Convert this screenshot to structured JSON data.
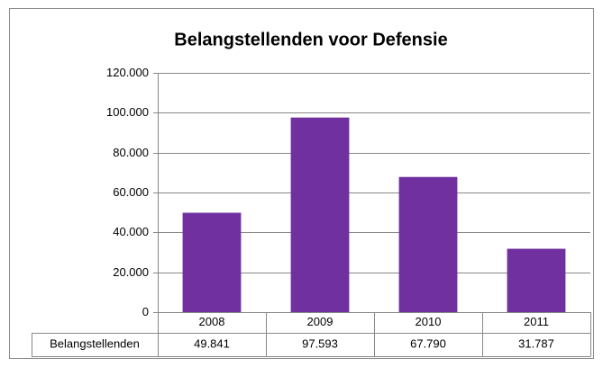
{
  "chart_data": {
    "type": "bar",
    "title": "Belangstellenden voor Defensie",
    "categories": [
      "2008",
      "2009",
      "2010",
      "2011"
    ],
    "series": [
      {
        "name": "Belangstellenden",
        "color": "#7030a0",
        "values": [
          49841,
          97593,
          67790,
          31787
        ],
        "value_labels": [
          "49.841",
          "97.593",
          "67.790",
          "31.787"
        ]
      }
    ],
    "ylim": [
      0,
      120000
    ],
    "yticks": [
      0,
      {
        "value": 20000,
        "label": "20.000"
      },
      {
        "value": 40000,
        "label": "40.000"
      },
      {
        "value": 60000,
        "label": "60.000"
      },
      {
        "value": 80000,
        "label": "80.000"
      },
      {
        "value": 100000,
        "label": "100.000"
      },
      {
        "value": 120000,
        "label": "120.000"
      }
    ],
    "grid": true,
    "data_table": true
  }
}
